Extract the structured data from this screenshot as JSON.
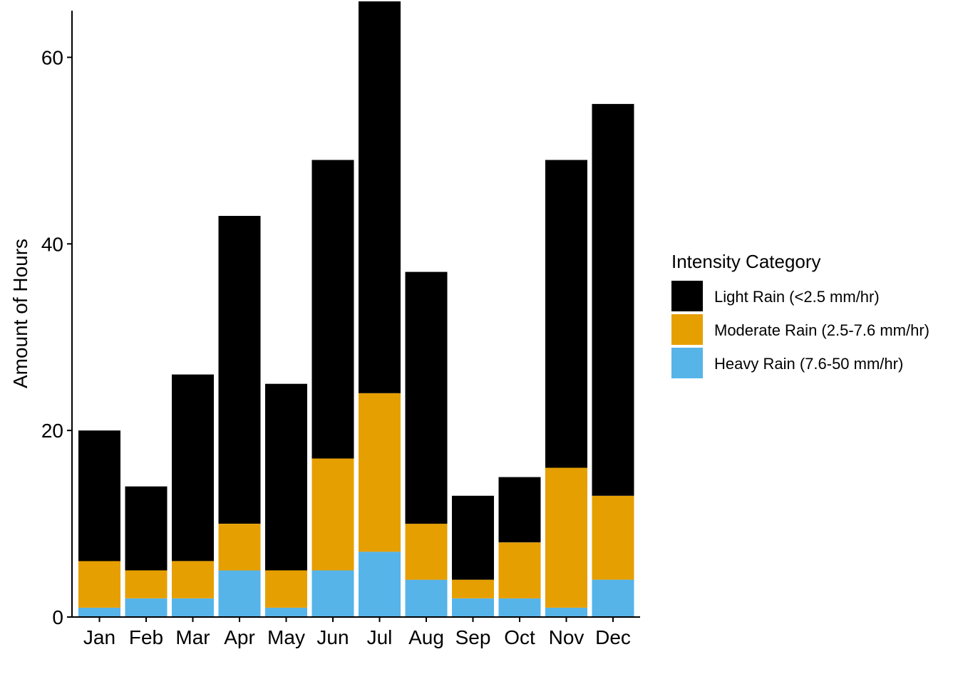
{
  "chart_data": {
    "type": "bar",
    "stacked": true,
    "title": "",
    "xlabel": "",
    "ylabel": "Amount of Hours",
    "ylim": [
      0,
      65
    ],
    "yticks": [
      0,
      20,
      40,
      60
    ],
    "grid": false,
    "legend_placement": "right",
    "legend_title": "Intensity Category",
    "categories": [
      "Jan",
      "Feb",
      "Mar",
      "Apr",
      "May",
      "Jun",
      "Jul",
      "Aug",
      "Sep",
      "Oct",
      "Nov",
      "Dec"
    ],
    "series": [
      {
        "name": "Heavy Rain (7.6-50 mm/hr)",
        "color": "#56B4E9",
        "values": [
          1,
          2,
          2,
          5,
          1,
          5,
          7,
          4,
          2,
          2,
          1,
          4
        ]
      },
      {
        "name": "Moderate Rain (2.5-7.6 mm/hr)",
        "color": "#E69F00",
        "values": [
          5,
          3,
          4,
          5,
          4,
          12,
          17,
          6,
          2,
          6,
          15,
          9
        ]
      },
      {
        "name": "Light Rain (<2.5 mm/hr)",
        "color": "#000000",
        "values": [
          14,
          9,
          20,
          33,
          20,
          32,
          42,
          27,
          9,
          7,
          33,
          42
        ]
      }
    ],
    "legend_order": [
      "Light Rain (<2.5 mm/hr)",
      "Moderate Rain (2.5-7.6 mm/hr)",
      "Heavy Rain (7.6-50 mm/hr)"
    ]
  }
}
